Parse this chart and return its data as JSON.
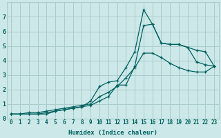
{
  "xlabel": "Humidex (Indice chaleur)",
  "ylabel": "",
  "background_color": "#cce8e8",
  "grid_color": "#aacccc",
  "line_color": "#006060",
  "x_values": [
    0,
    1,
    2,
    3,
    4,
    5,
    6,
    7,
    8,
    9,
    10,
    11,
    12,
    13,
    14,
    15,
    16,
    17,
    18,
    19,
    20,
    21,
    22,
    23
  ],
  "curve1": [
    0.3,
    0.3,
    0.3,
    0.3,
    0.3,
    0.5,
    0.6,
    0.7,
    0.8,
    0.9,
    1.2,
    1.5,
    2.3,
    2.3,
    3.6,
    6.4,
    6.5,
    5.2,
    5.1,
    5.1,
    4.9,
    3.9,
    3.7,
    3.6
  ],
  "curve2": [
    0.3,
    0.3,
    0.3,
    0.3,
    0.4,
    0.5,
    0.6,
    0.7,
    0.8,
    1.2,
    2.2,
    2.5,
    2.6,
    3.5,
    4.6,
    7.5,
    6.5,
    5.2,
    5.1,
    5.1,
    4.9,
    4.7,
    4.6,
    3.6
  ],
  "curve3": [
    0.3,
    0.3,
    0.4,
    0.4,
    0.5,
    0.6,
    0.7,
    0.8,
    0.9,
    1.0,
    1.5,
    1.8,
    2.2,
    2.8,
    3.5,
    4.5,
    4.5,
    4.2,
    3.8,
    3.5,
    3.3,
    3.2,
    3.2,
    3.6
  ],
  "xlim": [
    -0.5,
    23.5
  ],
  "ylim": [
    0,
    8
  ],
  "yticks": [
    0,
    1,
    2,
    3,
    4,
    5,
    6,
    7
  ],
  "xticks": [
    0,
    1,
    2,
    3,
    4,
    5,
    6,
    7,
    8,
    9,
    10,
    11,
    12,
    13,
    14,
    15,
    16,
    17,
    18,
    19,
    20,
    21,
    22,
    23
  ],
  "tick_fontsize": 5.5,
  "xlabel_fontsize": 6.5,
  "linewidth": 0.9,
  "markersize": 3.5
}
